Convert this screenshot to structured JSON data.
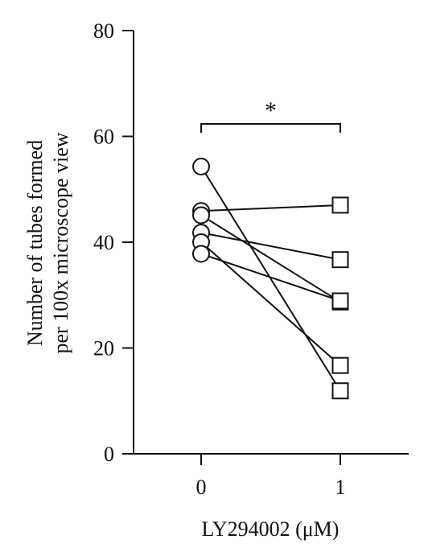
{
  "chart_data": {
    "type": "scatter",
    "style": "paired before-after plot",
    "xlabel": "LY294002 (μM)",
    "ylabel": [
      "Number of tubes formed",
      "per 100x microscope view"
    ],
    "x_categories": [
      "0",
      "1"
    ],
    "y_ticks": [
      "0",
      "20",
      "40",
      "60",
      "80"
    ],
    "ylim": [
      0,
      80
    ],
    "marker_at_0": "circle",
    "marker_at_1": "square",
    "pairs": [
      {
        "before": 54.3,
        "after": 11.9
      },
      {
        "before": 45.9,
        "after": 47.0
      },
      {
        "before": 45.1,
        "after": 28.7
      },
      {
        "before": 41.8,
        "after": 36.7
      },
      {
        "before": 40.0,
        "after": 16.7
      },
      {
        "before": 37.8,
        "after": 28.9
      }
    ],
    "significance": {
      "label": "*",
      "between": [
        "0",
        "1"
      ]
    },
    "colors": {
      "ink": "#111111",
      "background": "#ffffff"
    }
  }
}
